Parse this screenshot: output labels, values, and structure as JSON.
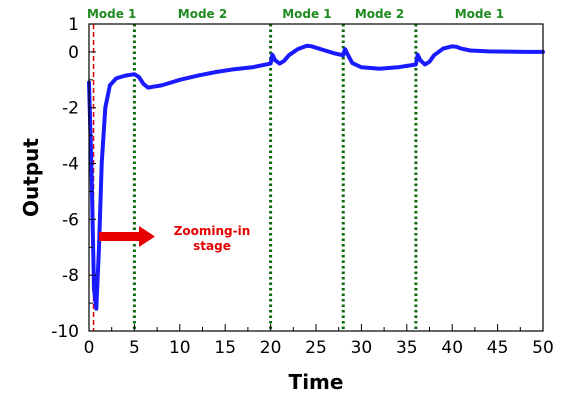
{
  "chart_data": {
    "type": "line",
    "xlabel": "Time",
    "ylabel": "Output",
    "xlim": [
      0,
      50
    ],
    "ylim": [
      -10,
      1
    ],
    "x_ticks": [
      0,
      5,
      10,
      15,
      20,
      25,
      30,
      35,
      40,
      45,
      50
    ],
    "y_ticks": [
      {
        "value": 1,
        "label": "1"
      },
      {
        "value": 0,
        "label": "0"
      },
      {
        "value": -2,
        "label": "-2"
      },
      {
        "value": -4,
        "label": "-4"
      },
      {
        "value": -6,
        "label": "-6"
      },
      {
        "value": -8,
        "label": "-8"
      },
      {
        "value": -10,
        "label": "-10"
      }
    ],
    "series": [
      {
        "color": "#1a1aff",
        "x": [
          0,
          0.3,
          0.55,
          0.8,
          1.1,
          1.4,
          1.8,
          2.3,
          3,
          4,
          5,
          5.5,
          6,
          6.5,
          7,
          8,
          9,
          10,
          12,
          14,
          16,
          18,
          20,
          20.2,
          20.5,
          21,
          21.5,
          22,
          23,
          24,
          24.5,
          25,
          26,
          27,
          28,
          28.2,
          28.5,
          29,
          30,
          32,
          34,
          36,
          36.2,
          36.5,
          37,
          37.5,
          38,
          39,
          40,
          40.5,
          41,
          42,
          44,
          46,
          48,
          50
        ],
        "y": [
          -1.1,
          -4.5,
          -8.5,
          -9.2,
          -7.0,
          -4.0,
          -2.0,
          -1.2,
          -0.95,
          -0.85,
          -0.8,
          -0.9,
          -1.15,
          -1.28,
          -1.25,
          -1.2,
          -1.1,
          -1.0,
          -0.85,
          -0.72,
          -0.62,
          -0.55,
          -0.42,
          -0.1,
          -0.3,
          -0.42,
          -0.32,
          -0.12,
          0.1,
          0.22,
          0.2,
          0.15,
          0.05,
          -0.05,
          -0.12,
          0.1,
          -0.1,
          -0.4,
          -0.55,
          -0.6,
          -0.55,
          -0.45,
          -0.1,
          -0.3,
          -0.45,
          -0.35,
          -0.12,
          0.12,
          0.2,
          0.18,
          0.12,
          0.05,
          0.02,
          0.01,
          0.0,
          0.0
        ]
      }
    ],
    "mode_switches": [
      5,
      20,
      28,
      36
    ],
    "zoom_line_x": 0.5,
    "mode_labels": [
      {
        "text": "Mode 1",
        "from": 0,
        "to": 5
      },
      {
        "text": "Mode 2",
        "from": 5,
        "to": 20
      },
      {
        "text": "Mode 1",
        "from": 20,
        "to": 28
      },
      {
        "text": "Mode 2",
        "from": 28,
        "to": 36
      },
      {
        "text": "Mode 1",
        "from": 36,
        "to": 50
      }
    ],
    "annotation": {
      "line1": "Zooming-in",
      "line2": "stage"
    },
    "colors": {
      "line": "#1a1aff",
      "mode_line": "#0b6b0b",
      "mode_text": "#1f8a1f",
      "zoom_line": "#e60000",
      "arrow": "#e60000"
    }
  }
}
